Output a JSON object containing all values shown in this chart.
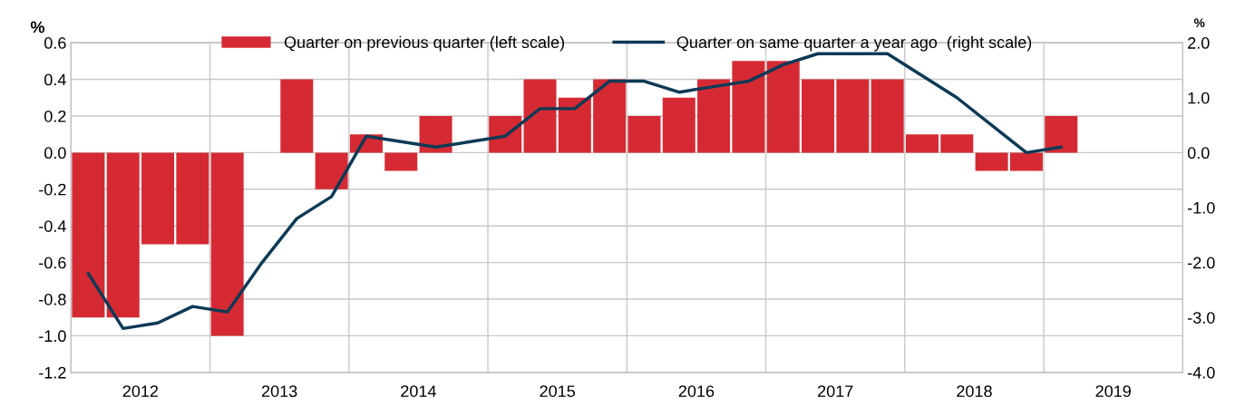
{
  "chart_data": {
    "type": "bar",
    "ylabel": "%",
    "y2label": "%",
    "x": [
      2012.125,
      2012.375,
      2012.625,
      2012.875,
      2013.125,
      2013.375,
      2013.625,
      2013.875,
      2014.125,
      2014.375,
      2014.625,
      2014.875,
      2015.125,
      2015.375,
      2015.625,
      2015.875,
      2016.125,
      2016.375,
      2016.625,
      2016.875,
      2017.125,
      2017.375,
      2017.625,
      2017.875,
      2018.125,
      2018.375,
      2018.625,
      2018.875,
      2019.125
    ],
    "series": [
      {
        "name": "Quarter on previous quarter (left scale)",
        "color": "#d52a33",
        "values": [
          -0.9,
          -0.9,
          -0.5,
          -0.5,
          -1.0,
          0.0,
          0.4,
          -0.2,
          0.1,
          -0.1,
          0.2,
          0.0,
          0.2,
          0.4,
          0.3,
          0.4,
          0.2,
          0.3,
          0.4,
          0.5,
          0.5,
          0.4,
          0.4,
          0.4,
          0.1,
          0.1,
          -0.1,
          -0.1,
          0.2
        ]
      },
      {
        "name": "Quarter on same quarter a year ago  (right scale)",
        "type": "line",
        "axis": "y2",
        "color": "#0d3a56",
        "values": [
          -2.2,
          -3.2,
          -3.1,
          -2.8,
          -2.9,
          -2.0,
          -1.2,
          -0.8,
          0.3,
          0.2,
          0.1,
          0.2,
          0.3,
          0.8,
          0.8,
          1.3,
          1.3,
          1.1,
          1.2,
          1.3,
          1.6,
          1.8,
          1.8,
          1.8,
          1.4,
          1.0,
          0.5,
          0.0,
          0.1
        ]
      }
    ],
    "xlim": [
      2012,
      2020
    ],
    "xticks": [
      {
        "value": 2012.5,
        "label": "2012"
      },
      {
        "value": 2013,
        "label": null
      },
      {
        "value": 2013.5,
        "label": "2013"
      },
      {
        "value": 2014,
        "label": null
      },
      {
        "value": 2014.5,
        "label": "2014"
      },
      {
        "value": 2015,
        "label": null
      },
      {
        "value": 2015.5,
        "label": "2015"
      },
      {
        "value": 2016,
        "label": null
      },
      {
        "value": 2016.5,
        "label": "2016"
      },
      {
        "value": 2017,
        "label": null
      },
      {
        "value": 2017.5,
        "label": "2017"
      },
      {
        "value": 2018,
        "label": null
      },
      {
        "value": 2018.5,
        "label": "2018"
      },
      {
        "value": 2019,
        "label": null
      },
      {
        "value": 2019.5,
        "label": "2019"
      }
    ],
    "ylim": [
      -1.2,
      0.6
    ],
    "yticks": [
      -1.2,
      {
        "value": -1,
        "label": "-1.0"
      },
      -0.8,
      -0.6,
      -0.4,
      -0.2,
      {
        "value": 0,
        "label": "0.0"
      },
      0.2,
      0.4,
      0.6
    ],
    "y2lim": [
      -4,
      2
    ],
    "y2ticks": [
      {
        "value": -4,
        "label": "-4.0"
      },
      {
        "value": -3,
        "label": "-3.0"
      },
      {
        "value": -2,
        "label": "-2.0"
      },
      {
        "value": -1,
        "label": "-1.0"
      },
      {
        "value": 0,
        "label": "0.0"
      },
      {
        "value": 1,
        "label": "1.0"
      },
      {
        "value": 2,
        "label": "2.0"
      }
    ],
    "grid": true,
    "legend": "top",
    "line_style": "solid",
    "marker": "none"
  }
}
